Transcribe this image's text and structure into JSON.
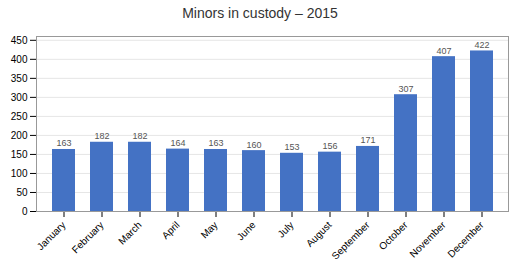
{
  "chart_data": {
    "type": "bar",
    "title": "Minors in custody – 2015",
    "categories": [
      "January",
      "February",
      "March",
      "April",
      "May",
      "June",
      "July",
      "August",
      "September",
      "October",
      "November",
      "December"
    ],
    "values": [
      163,
      182,
      182,
      164,
      163,
      160,
      153,
      156,
      171,
      307,
      407,
      422
    ],
    "color": "#4472C4",
    "ylim": [
      0,
      460
    ],
    "yticks": [
      0,
      50,
      100,
      150,
      200,
      250,
      300,
      350,
      400,
      450
    ],
    "grid": true,
    "data_labels": true
  }
}
